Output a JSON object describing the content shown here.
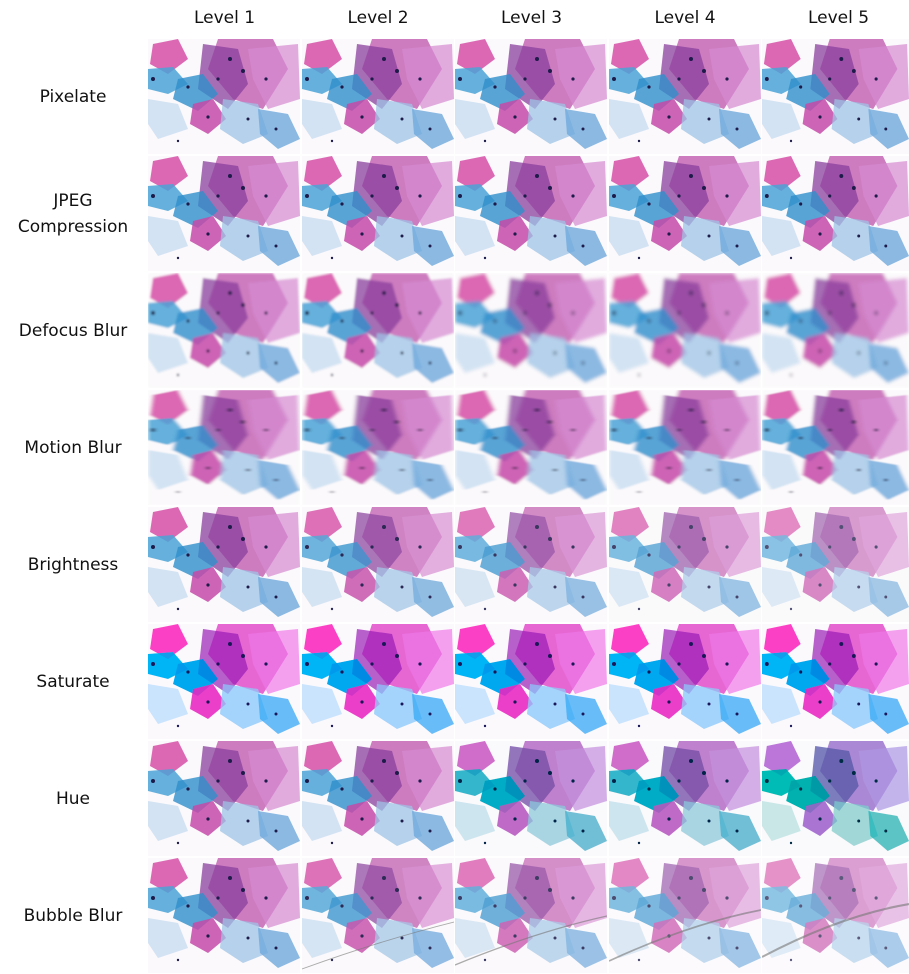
{
  "columns": [
    "Level 1",
    "Level 2",
    "Level 3",
    "Level 4",
    "Level 5"
  ],
  "rows": [
    "Pixelate",
    "JPEG Compression",
    "Defocus Blur",
    "Motion Blur",
    "Brightness",
    "Saturate",
    "Hue",
    "Bubble Blur"
  ]
}
